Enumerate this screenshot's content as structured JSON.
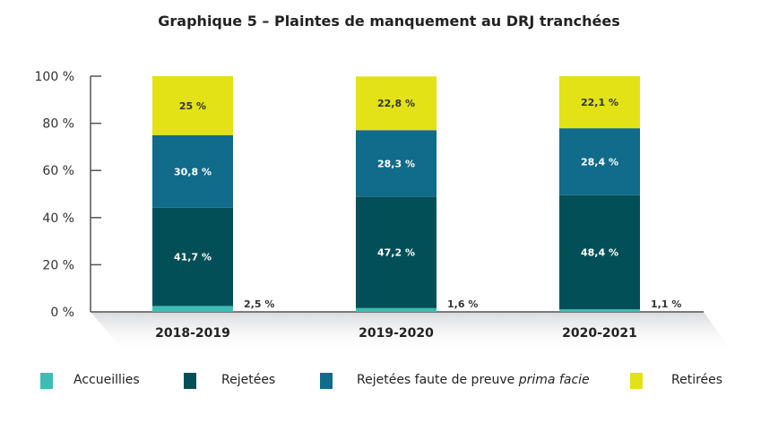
{
  "chart_data": {
    "type": "bar",
    "stacked": true,
    "title": "Graphique 5 – Plaintes de manquement au DRJ tranchées",
    "categories": [
      "2018-2019",
      "2019-2020",
      "2020-2021"
    ],
    "yticks": [
      "0 %",
      "20 %",
      "40 %",
      "60 %",
      "80 %",
      "100 %"
    ],
    "ylim": [
      0,
      100
    ],
    "grid": false,
    "legend_position": "bottom",
    "series": [
      {
        "name": "Accueillies",
        "color": "#3dbdb3",
        "values": [
          2.5,
          1.6,
          1.1
        ],
        "labels": [
          "2,5 %",
          "1,6 %",
          "1,1 %"
        ]
      },
      {
        "name": "Rejetées",
        "color": "#024f57",
        "values": [
          41.7,
          47.2,
          48.4
        ],
        "labels": [
          "41,7 %",
          "47,2 %",
          "48,4 %"
        ]
      },
      {
        "name": "Rejetées faute de preuve",
        "name_italic": "prima facie",
        "color": "#116b8a",
        "values": [
          30.8,
          28.3,
          28.4
        ],
        "labels": [
          "30,8 %",
          "28,3 %",
          "28,4 %"
        ]
      },
      {
        "name": "Retirées",
        "color": "#e2e216",
        "values": [
          25,
          22.8,
          22.1
        ],
        "labels": [
          "25 %",
          "22,8 %",
          "22,1 %"
        ]
      }
    ]
  }
}
